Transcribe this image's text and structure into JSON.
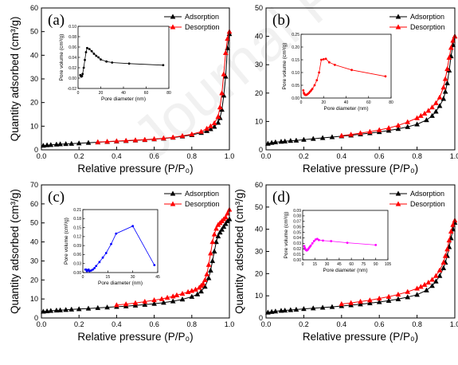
{
  "watermark": "Journal Pre-proof",
  "chart_data": [
    {
      "type": "line",
      "panel_label": "(a)",
      "xlabel": "Relative pressure (P/P₀)",
      "ylabel": "Quantity adsorbed (cm³/g)",
      "xlim": [
        0.0,
        1.0
      ],
      "ylim": [
        0,
        60
      ],
      "xticks": [
        "0.0",
        "0.2",
        "0.4",
        "0.6",
        "0.8",
        "1.0"
      ],
      "yticks": [
        "0",
        "10",
        "20",
        "30",
        "40",
        "50",
        "60"
      ],
      "legend_position": "top-right",
      "series": [
        {
          "name": "Adsorption",
          "color": "#000000",
          "marker": "triangle",
          "x": [
            0.01,
            0.03,
            0.05,
            0.08,
            0.1,
            0.13,
            0.16,
            0.2,
            0.25,
            0.3,
            0.35,
            0.4,
            0.45,
            0.5,
            0.55,
            0.6,
            0.65,
            0.7,
            0.75,
            0.8,
            0.85,
            0.88,
            0.9,
            0.92,
            0.94,
            0.95,
            0.96,
            0.97,
            0.98,
            0.99,
            1.0
          ],
          "y": [
            1.8,
            2.0,
            2.1,
            2.3,
            2.4,
            2.5,
            2.6,
            2.8,
            3.0,
            3.2,
            3.4,
            3.6,
            3.8,
            4.0,
            4.2,
            4.5,
            4.8,
            5.2,
            5.7,
            6.3,
            7.2,
            8.0,
            8.8,
            9.8,
            11.5,
            13.5,
            17,
            23,
            31,
            43,
            49
          ]
        },
        {
          "name": "Desorption",
          "color": "#ff0000",
          "marker": "triangle",
          "x": [
            1.0,
            0.99,
            0.98,
            0.97,
            0.96,
            0.95,
            0.94,
            0.92,
            0.9,
            0.88,
            0.85,
            0.8,
            0.75,
            0.7,
            0.65,
            0.6,
            0.55,
            0.5,
            0.45,
            0.4,
            0.35,
            0.3
          ],
          "y": [
            50,
            47,
            41,
            32,
            24,
            18,
            14,
            11.3,
            10,
            9,
            7.7,
            6.6,
            5.9,
            5.3,
            4.9,
            4.6,
            4.3,
            4.1,
            3.9,
            3.7,
            3.5,
            3.3
          ]
        }
      ],
      "inset": {
        "xlabel": "Pore diameter (nm)",
        "ylabel": "Pore volume (cm³/g)",
        "xlim": [
          0,
          80
        ],
        "ylim": [
          -0.02,
          0.1
        ],
        "xticks": [
          "0",
          "20",
          "40",
          "60",
          "80"
        ],
        "yticks": [
          "-0.02",
          "0.00",
          "0.02",
          "0.04",
          "0.06",
          "0.08",
          "0.10"
        ],
        "color": "#000000",
        "x": [
          2,
          2.5,
          3,
          3.5,
          4,
          5,
          6,
          7,
          8,
          10,
          12,
          14,
          16,
          18,
          20,
          25,
          30,
          45,
          75
        ],
        "y": [
          0.006,
          0.004,
          0.003,
          0.004,
          0.008,
          0.02,
          0.035,
          0.05,
          0.058,
          0.056,
          0.052,
          0.047,
          0.043,
          0.04,
          0.036,
          0.032,
          0.03,
          0.028,
          0.025
        ]
      }
    },
    {
      "type": "line",
      "panel_label": "(b)",
      "xlabel": "Relative pressure (P/P₀)",
      "ylabel": "",
      "xlim": [
        0.0,
        1.0
      ],
      "ylim": [
        0,
        50
      ],
      "xticks": [
        "0.0",
        "0.2",
        "0.4",
        "0.6",
        "0.8",
        "1.0"
      ],
      "yticks": [
        "0",
        "10",
        "20",
        "30",
        "40",
        "50"
      ],
      "legend_position": "top-right",
      "series": [
        {
          "name": "Adsorption",
          "color": "#000000",
          "marker": "triangle",
          "x": [
            0.01,
            0.03,
            0.05,
            0.08,
            0.1,
            0.13,
            0.16,
            0.2,
            0.25,
            0.3,
            0.35,
            0.4,
            0.45,
            0.5,
            0.55,
            0.6,
            0.65,
            0.7,
            0.75,
            0.8,
            0.85,
            0.88,
            0.9,
            0.92,
            0.94,
            0.95,
            0.96,
            0.97,
            0.98,
            0.99,
            1.0
          ],
          "y": [
            2.2,
            2.5,
            2.7,
            2.9,
            3.0,
            3.2,
            3.3,
            3.6,
            3.9,
            4.2,
            4.5,
            4.8,
            5.1,
            5.5,
            5.9,
            6.3,
            6.8,
            7.4,
            8.1,
            9.0,
            10.5,
            12,
            13.5,
            15.5,
            18,
            20.5,
            23.5,
            28,
            33,
            37,
            40
          ]
        },
        {
          "name": "Desorption",
          "color": "#ff0000",
          "marker": "triangle",
          "x": [
            1.0,
            0.99,
            0.98,
            0.97,
            0.96,
            0.95,
            0.94,
            0.92,
            0.9,
            0.88,
            0.86,
            0.84,
            0.82,
            0.8,
            0.75,
            0.7,
            0.65,
            0.6,
            0.55,
            0.5,
            0.45,
            0.4
          ],
          "y": [
            40,
            38.5,
            36,
            32.5,
            28.5,
            25,
            22,
            18.5,
            16.5,
            15,
            13.8,
            12.8,
            12,
            11.2,
            9.8,
            8.6,
            7.7,
            7.0,
            6.4,
            5.9,
            5.4,
            5.0
          ]
        }
      ],
      "inset": {
        "xlabel": "Pore diameter (nm)",
        "ylabel": "Pore volume (cm³/g)",
        "xlim": [
          0,
          80
        ],
        "ylim": [
          0.0,
          0.25
        ],
        "xticks": [
          "0",
          "20",
          "40",
          "60",
          "80"
        ],
        "yticks": [
          "0.00",
          "0.05",
          "0.10",
          "0.15",
          "0.20",
          "0.25"
        ],
        "color": "#ff0000",
        "x": [
          2,
          2.5,
          3,
          3.5,
          4,
          4.5,
          5,
          6,
          7,
          8,
          9,
          10,
          12,
          14,
          16,
          18,
          20,
          22,
          25,
          30,
          45,
          75
        ],
        "y": [
          0.03,
          0.02,
          0.015,
          0.013,
          0.012,
          0.012,
          0.013,
          0.016,
          0.02,
          0.025,
          0.03,
          0.036,
          0.05,
          0.07,
          0.1,
          0.15,
          0.152,
          0.154,
          0.14,
          0.13,
          0.11,
          0.085
        ]
      }
    },
    {
      "type": "line",
      "panel_label": "(c)",
      "xlabel": "Relative pressure (P/P₀)",
      "ylabel": "Quantity adsorbed (cm³/g)",
      "xlim": [
        0.0,
        1.0
      ],
      "ylim": [
        0,
        70
      ],
      "xticks": [
        "0.0",
        "0.2",
        "0.4",
        "0.6",
        "0.8",
        "1.0"
      ],
      "yticks": [
        "0",
        "10",
        "20",
        "30",
        "40",
        "50",
        "60",
        "70"
      ],
      "legend_position": "top-right",
      "series": [
        {
          "name": "Adsorption",
          "color": "#000000",
          "marker": "triangle",
          "x": [
            0.01,
            0.03,
            0.05,
            0.08,
            0.1,
            0.13,
            0.16,
            0.2,
            0.25,
            0.3,
            0.35,
            0.4,
            0.45,
            0.5,
            0.55,
            0.6,
            0.65,
            0.7,
            0.75,
            0.8,
            0.83,
            0.85,
            0.87,
            0.89,
            0.9,
            0.91,
            0.92,
            0.93,
            0.94,
            0.95,
            0.96,
            0.97,
            0.98,
            0.99,
            1.0
          ],
          "y": [
            3.4,
            3.6,
            3.8,
            4.0,
            4.1,
            4.3,
            4.5,
            4.7,
            5.0,
            5.3,
            5.6,
            5.9,
            6.2,
            6.6,
            7.0,
            7.5,
            8.1,
            8.8,
            9.8,
            11.2,
            12.5,
            14,
            16.5,
            21,
            25,
            30,
            35,
            40,
            43,
            45,
            46.5,
            48,
            49.5,
            51,
            52
          ]
        },
        {
          "name": "Desorption",
          "color": "#ff0000",
          "marker": "triangle",
          "x": [
            1.0,
            0.99,
            0.98,
            0.97,
            0.96,
            0.95,
            0.94,
            0.93,
            0.92,
            0.91,
            0.9,
            0.89,
            0.88,
            0.87,
            0.86,
            0.85,
            0.84,
            0.82,
            0.8,
            0.78,
            0.75,
            0.72,
            0.7,
            0.67,
            0.64,
            0.6,
            0.55,
            0.5,
            0.45,
            0.4
          ],
          "y": [
            57,
            55,
            53,
            52,
            51,
            50,
            49,
            47,
            44,
            40,
            34,
            28,
            23,
            20,
            18,
            17,
            16,
            15,
            14.3,
            13.7,
            12.8,
            12,
            11.4,
            10.7,
            10,
            9.4,
            8.6,
            7.9,
            7.3,
            6.8
          ]
        }
      ],
      "inset": {
        "xlabel": "Pore diameter (nm)",
        "ylabel": "Pore volume (cm³/g)",
        "xlim": [
          0,
          45
        ],
        "ylim": [
          0.0,
          0.21
        ],
        "xticks": [
          "0",
          "15",
          "30",
          "45"
        ],
        "yticks": [
          "0.00",
          "0.03",
          "0.06",
          "0.09",
          "0.12",
          "0.15",
          "0.18",
          "0.21"
        ],
        "color": "#0000ff",
        "x": [
          1.5,
          2,
          2.5,
          3,
          3.5,
          4,
          5,
          6,
          7,
          8,
          10,
          12,
          14,
          17,
          20,
          30,
          43
        ],
        "y": [
          0.01,
          0.01,
          0.005,
          0.008,
          0.01,
          0.005,
          0.007,
          0.01,
          0.015,
          0.022,
          0.035,
          0.05,
          0.065,
          0.095,
          0.13,
          0.155,
          0.025
        ]
      }
    },
    {
      "type": "line",
      "panel_label": "(d)",
      "xlabel": "Relative pressure (P/P₀)",
      "ylabel": "Quantity adsorbed (cm³/g)",
      "xlim": [
        0.0,
        1.0
      ],
      "ylim": [
        0,
        60
      ],
      "xticks": [
        "0.0",
        "0.2",
        "0.4",
        "0.6",
        "0.8",
        "1.0"
      ],
      "yticks": [
        "0",
        "10",
        "20",
        "30",
        "40",
        "50",
        "60"
      ],
      "legend_position": "top-right",
      "series": [
        {
          "name": "Adsorption",
          "color": "#000000",
          "marker": "triangle",
          "x": [
            0.01,
            0.03,
            0.05,
            0.08,
            0.1,
            0.13,
            0.16,
            0.2,
            0.25,
            0.3,
            0.35,
            0.4,
            0.45,
            0.5,
            0.55,
            0.6,
            0.65,
            0.7,
            0.75,
            0.8,
            0.85,
            0.88,
            0.9,
            0.92,
            0.94,
            0.95,
            0.96,
            0.97,
            0.98,
            0.99,
            1.0
          ],
          "y": [
            2.5,
            2.8,
            3.0,
            3.3,
            3.4,
            3.6,
            3.8,
            4.1,
            4.4,
            4.7,
            5.0,
            5.4,
            5.8,
            6.2,
            6.7,
            7.2,
            7.8,
            8.5,
            9.4,
            10.5,
            12.5,
            14.5,
            16.5,
            19,
            22.5,
            25,
            28,
            32,
            36,
            40,
            43
          ]
        },
        {
          "name": "Desorption",
          "color": "#ff0000",
          "marker": "triangle",
          "x": [
            1.0,
            0.99,
            0.98,
            0.97,
            0.96,
            0.95,
            0.94,
            0.92,
            0.9,
            0.88,
            0.86,
            0.84,
            0.82,
            0.8,
            0.75,
            0.7,
            0.65,
            0.6,
            0.55,
            0.5,
            0.45,
            0.4
          ],
          "y": [
            44,
            42,
            39,
            35,
            31,
            28,
            25,
            21.5,
            19,
            17.3,
            16,
            15,
            14.1,
            13.3,
            11.8,
            10.6,
            9.6,
            8.8,
            8.0,
            7.4,
            6.8,
            6.3
          ]
        }
      ],
      "inset": {
        "xlabel": "Pore diameter (nm)",
        "ylabel": "Pore volume (cm³/g)",
        "xlim": [
          0,
          105
        ],
        "ylim": [
          0.0,
          0.09
        ],
        "xticks": [
          "0",
          "15",
          "30",
          "45",
          "60",
          "75",
          "90",
          "105"
        ],
        "yticks": [
          "0.00",
          "0.01",
          "0.02",
          "0.03",
          "0.04",
          "0.05",
          "0.06",
          "0.07",
          "0.08",
          "0.09"
        ],
        "color": "#ff00ff",
        "x": [
          2,
          2.5,
          3,
          3.5,
          4,
          5,
          6,
          7,
          8,
          9,
          10,
          12,
          14,
          16,
          18,
          20,
          25,
          35,
          55,
          90
        ],
        "y": [
          0.025,
          0.022,
          0.02,
          0.019,
          0.018,
          0.017,
          0.018,
          0.02,
          0.022,
          0.024,
          0.026,
          0.03,
          0.034,
          0.037,
          0.038,
          0.036,
          0.035,
          0.034,
          0.031,
          0.027
        ]
      }
    }
  ]
}
